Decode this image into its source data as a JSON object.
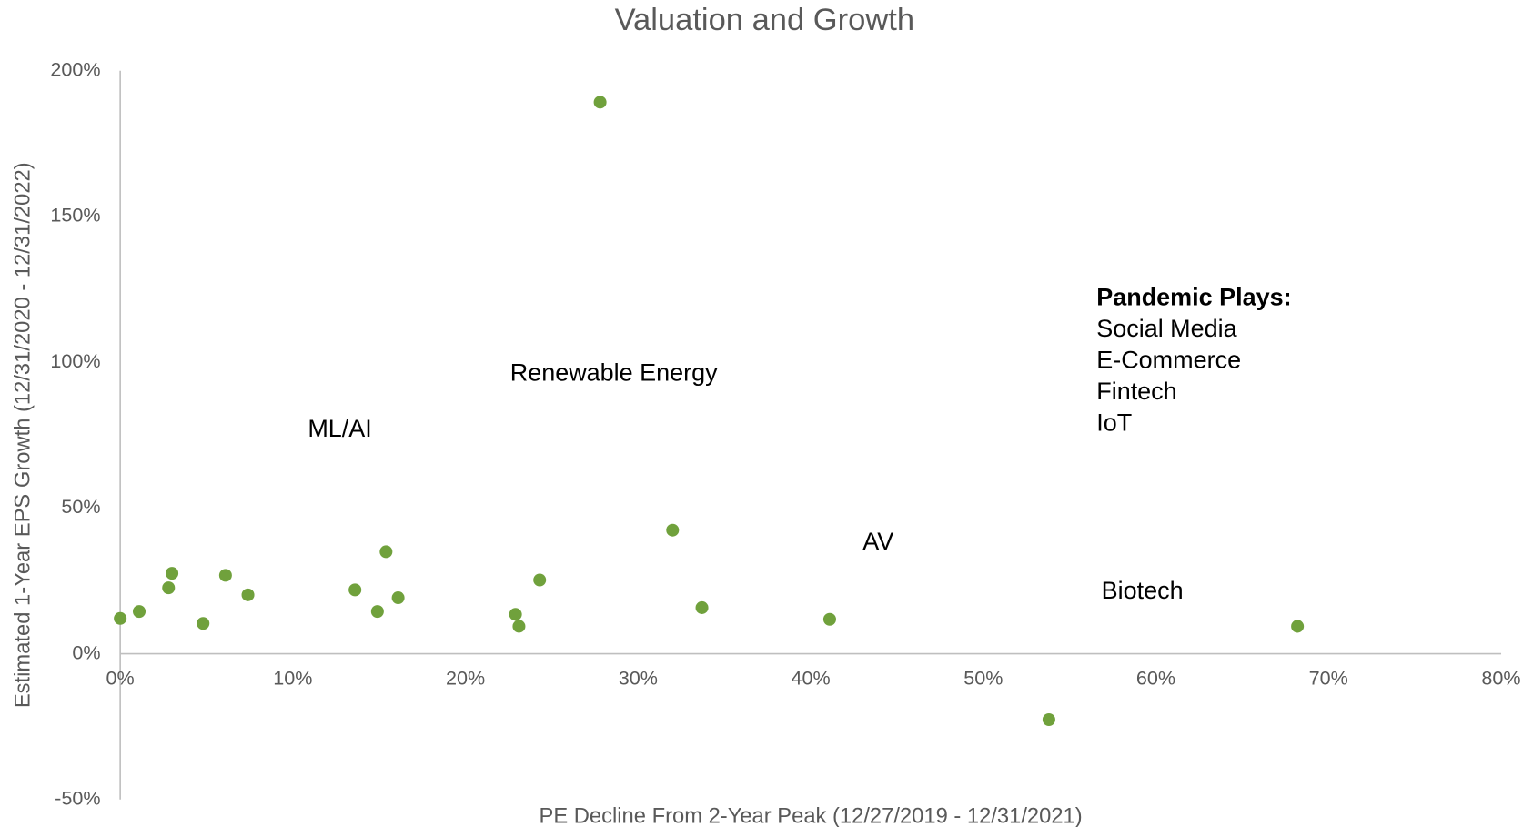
{
  "chart_data": {
    "type": "scatter",
    "title": "Valuation and Growth",
    "x_label": "PE Decline From 2-Year Peak (12/27/2019 - 12/31/2021)",
    "y_label": "Estimated 1-Year EPS Growth (12/31/2020 - 12/31/2022)",
    "color": "#70a13c",
    "x": [
      0,
      1.1,
      2.8,
      3.0,
      4.8,
      6.1,
      7.4,
      13.6,
      14.9,
      15.4,
      16.1,
      22.9,
      23.1,
      24.3,
      27.8,
      32.0,
      33.7,
      41.1,
      53.8,
      68.2
    ],
    "values": [
      12.1,
      14.5,
      22.6,
      27.6,
      10.4,
      26.9,
      20.2,
      21.9,
      14.5,
      35.0,
      19.2,
      13.5,
      9.4,
      25.3,
      189.2,
      42.4,
      15.8,
      11.8,
      -22.6,
      9.4
    ],
    "xlim": [
      0,
      80
    ],
    "xticks": [
      {
        "value": 0,
        "label": "0%"
      },
      {
        "value": 10,
        "label": "10%"
      },
      {
        "value": 20,
        "label": "20%"
      },
      {
        "value": 30,
        "label": "30%"
      },
      {
        "value": 40,
        "label": "40%"
      },
      {
        "value": 50,
        "label": "50%"
      },
      {
        "value": 60,
        "label": "60%"
      },
      {
        "value": 70,
        "label": "70%"
      },
      {
        "value": 80,
        "label": "80%"
      }
    ],
    "ylim": [
      -50,
      200
    ],
    "yticks": [
      {
        "value": -50,
        "label": "-50%"
      },
      {
        "value": 0,
        "label": "0%"
      },
      {
        "value": 50,
        "label": "50%"
      },
      {
        "value": 100,
        "label": "100%"
      },
      {
        "value": 150,
        "label": "150%"
      },
      {
        "value": 200,
        "label": "200%"
      }
    ],
    "grid": false,
    "annotations": [
      "ML/AI",
      "Renewable Energy",
      "AV",
      "Biotech",
      "Pandemic Plays:",
      "Social Media",
      "E-Commerce",
      "Fintech",
      "IoT"
    ]
  }
}
